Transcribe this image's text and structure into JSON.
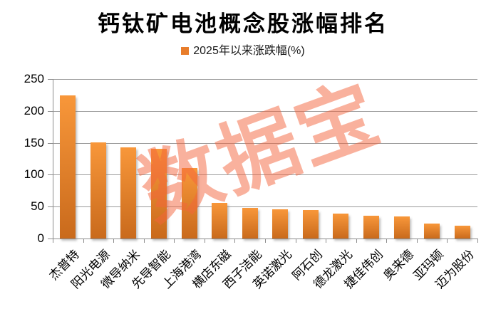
{
  "title": "钙钛矿电池概念股涨幅排名",
  "legend": {
    "label": "2025年以来涨跌幅(%)",
    "marker_color": "#E87D2B"
  },
  "watermark": {
    "text": "数据宝",
    "color": "rgba(244,100,60,0.5)"
  },
  "colors": {
    "bar_top": "#F8973A",
    "bar_bottom": "#C96A1C",
    "gridline": "#9b9b9b",
    "axis": "#8c8c8c",
    "text": "#000000"
  },
  "chart_data": {
    "type": "bar",
    "title": "钙钛矿电池概念股涨幅排名",
    "series_name": "2025年以来涨跌幅(%)",
    "categories": [
      "杰普特",
      "阳光电源",
      "微导纳米",
      "先导智能",
      "上海港湾",
      "横店东磁",
      "西子洁能",
      "英诺激光",
      "阿石创",
      "德龙激光",
      "捷佳伟创",
      "奥来德",
      "亚玛顿",
      "迈为股份"
    ],
    "values": [
      224,
      151,
      143,
      141,
      110,
      56,
      48,
      46,
      45,
      39,
      36,
      35,
      23,
      20
    ],
    "xlabel": "",
    "ylabel": "",
    "ylim": [
      0,
      250
    ],
    "yticks": [
      0,
      50,
      100,
      150,
      200,
      250
    ],
    "grid": true,
    "legend_position": "top-center"
  }
}
